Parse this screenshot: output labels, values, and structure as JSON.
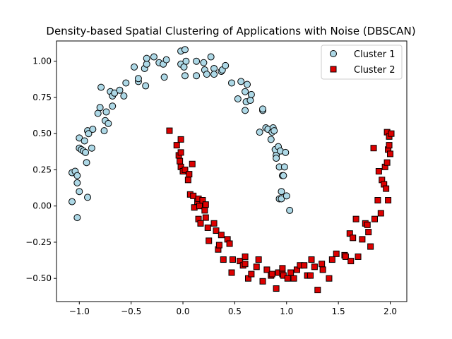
{
  "chart_data": {
    "type": "scatter",
    "title": "Density-based Spatial Clustering of Applications with Noise (DBSCAN)",
    "xlabel": "",
    "ylabel": "",
    "xlim": [
      -1.22,
      2.16
    ],
    "ylim": [
      -0.66,
      1.14
    ],
    "x_ticks": [
      -1.0,
      -0.5,
      0.0,
      0.5,
      1.0,
      1.5,
      2.0
    ],
    "y_ticks": [
      -0.5,
      -0.25,
      0.0,
      0.25,
      0.5,
      0.75,
      1.0
    ],
    "x_tick_labels": [
      "−1.0",
      "−0.5",
      "0.0",
      "0.5",
      "1.0",
      "1.5",
      "2.0"
    ],
    "y_tick_labels": [
      "−0.50",
      "−0.25",
      "0.00",
      "0.25",
      "0.50",
      "0.75",
      "1.00"
    ],
    "grid": false,
    "legend_position": "top-right",
    "series": [
      {
        "name": "Cluster 1",
        "marker": "circle",
        "color": "#add8e6",
        "edge_color": "#000000",
        "points": [
          [
            -1.07,
            0.03
          ],
          [
            -1.02,
            -0.08
          ],
          [
            -1.07,
            0.23
          ],
          [
            -1.04,
            0.24
          ],
          [
            -1.02,
            0.21
          ],
          [
            -1.02,
            0.16
          ],
          [
            -1.0,
            0.1
          ],
          [
            -1.0,
            0.47
          ],
          [
            -1.0,
            0.4
          ],
          [
            -0.98,
            0.39
          ],
          [
            -0.96,
            0.38
          ],
          [
            -0.95,
            0.45
          ],
          [
            -0.94,
            0.37
          ],
          [
            -0.93,
            0.3
          ],
          [
            -0.92,
            0.52
          ],
          [
            -0.92,
            0.06
          ],
          [
            -0.91,
            0.5
          ],
          [
            -0.88,
            0.4
          ],
          [
            -0.87,
            0.53
          ],
          [
            -0.82,
            0.64
          ],
          [
            -0.8,
            0.68
          ],
          [
            -0.79,
            0.82
          ],
          [
            -0.76,
            0.52
          ],
          [
            -0.75,
            0.59
          ],
          [
            -0.74,
            0.65
          ],
          [
            -0.72,
            0.57
          ],
          [
            -0.7,
            0.79
          ],
          [
            -0.68,
            0.69
          ],
          [
            -0.68,
            0.76
          ],
          [
            -0.66,
            0.78
          ],
          [
            -0.61,
            0.8
          ],
          [
            -0.57,
            0.76
          ],
          [
            -0.55,
            0.85
          ],
          [
            -0.47,
            0.96
          ],
          [
            -0.43,
            0.86
          ],
          [
            -0.43,
            0.88
          ],
          [
            -0.37,
            0.95
          ],
          [
            -0.36,
            0.83
          ],
          [
            -0.35,
            0.98
          ],
          [
            -0.35,
            1.02
          ],
          [
            -0.28,
            1.03
          ],
          [
            -0.23,
            0.99
          ],
          [
            -0.19,
            0.98
          ],
          [
            -0.18,
            0.89
          ],
          [
            -0.16,
            1.01
          ],
          [
            -0.02,
            1.07
          ],
          [
            -0.02,
            0.98
          ],
          [
            0.01,
            0.96
          ],
          [
            0.02,
            1.08
          ],
          [
            0.02,
            0.9
          ],
          [
            0.03,
            1.0
          ],
          [
            0.13,
            0.9
          ],
          [
            0.13,
            1.0
          ],
          [
            0.2,
            0.99
          ],
          [
            0.21,
            0.94
          ],
          [
            0.23,
            0.91
          ],
          [
            0.27,
            1.03
          ],
          [
            0.3,
            0.95
          ],
          [
            0.3,
            0.91
          ],
          [
            0.37,
            0.93
          ],
          [
            0.38,
            0.94
          ],
          [
            0.41,
            0.97
          ],
          [
            0.47,
            0.85
          ],
          [
            0.53,
            0.74
          ],
          [
            0.56,
            0.86
          ],
          [
            0.6,
            0.79
          ],
          [
            0.6,
            0.66
          ],
          [
            0.61,
            0.72
          ],
          [
            0.62,
            0.84
          ],
          [
            0.65,
            0.73
          ],
          [
            0.66,
            0.77
          ],
          [
            0.74,
            0.51
          ],
          [
            0.77,
            0.66
          ],
          [
            0.77,
            0.67
          ],
          [
            0.8,
            0.54
          ],
          [
            0.82,
            0.53
          ],
          [
            0.85,
            0.46
          ],
          [
            0.86,
            0.51
          ],
          [
            0.87,
            0.54
          ],
          [
            0.88,
            0.52
          ],
          [
            0.89,
            0.39
          ],
          [
            0.9,
            0.35
          ],
          [
            0.9,
            0.33
          ],
          [
            0.92,
            0.41
          ],
          [
            0.93,
            0.05
          ],
          [
            0.93,
            0.27
          ],
          [
            0.94,
            0.38
          ],
          [
            0.95,
            0.1
          ],
          [
            0.95,
            0.05
          ],
          [
            0.96,
            0.21
          ],
          [
            0.97,
            0.21
          ],
          [
            0.98,
            0.27
          ],
          [
            0.99,
            0.37
          ],
          [
            1.0,
            0.07
          ],
          [
            1.03,
            -0.03
          ]
        ]
      },
      {
        "name": "Cluster 2",
        "marker": "square",
        "color": "#dd0000",
        "edge_color": "#000000",
        "points": [
          [
            -0.13,
            0.52
          ],
          [
            -0.06,
            0.42
          ],
          [
            -0.04,
            0.35
          ],
          [
            -0.03,
            0.31
          ],
          [
            -0.02,
            0.46
          ],
          [
            -0.02,
            0.37
          ],
          [
            -0.02,
            0.27
          ],
          [
            0.0,
            0.24
          ],
          [
            0.02,
            0.25
          ],
          [
            0.05,
            0.18
          ],
          [
            0.06,
            0.22
          ],
          [
            0.07,
            0.08
          ],
          [
            0.09,
            0.29
          ],
          [
            0.1,
            0.07
          ],
          [
            0.11,
            -0.01
          ],
          [
            0.14,
            0.03
          ],
          [
            0.15,
            0.05
          ],
          [
            0.15,
            -0.09
          ],
          [
            0.16,
            0.0
          ],
          [
            0.17,
            -0.12
          ],
          [
            0.19,
            0.04
          ],
          [
            0.21,
            -0.03
          ],
          [
            0.22,
            0.01
          ],
          [
            0.22,
            -0.08
          ],
          [
            0.24,
            -0.15
          ],
          [
            0.25,
            -0.24
          ],
          [
            0.3,
            -0.12
          ],
          [
            0.32,
            -0.17
          ],
          [
            0.34,
            -0.3
          ],
          [
            0.35,
            -0.27
          ],
          [
            0.37,
            -0.2
          ],
          [
            0.39,
            -0.37
          ],
          [
            0.43,
            -0.23
          ],
          [
            0.45,
            -0.26
          ],
          [
            0.47,
            -0.46
          ],
          [
            0.48,
            -0.37
          ],
          [
            0.55,
            -0.38
          ],
          [
            0.58,
            -0.41
          ],
          [
            0.6,
            -0.35
          ],
          [
            0.6,
            -0.4
          ],
          [
            0.63,
            -0.5
          ],
          [
            0.66,
            -0.47
          ],
          [
            0.71,
            -0.42
          ],
          [
            0.73,
            -0.37
          ],
          [
            0.77,
            -0.52
          ],
          [
            0.81,
            -0.44
          ],
          [
            0.85,
            -0.48
          ],
          [
            0.86,
            -0.47
          ],
          [
            0.9,
            -0.57
          ],
          [
            0.92,
            -0.46
          ],
          [
            0.96,
            -0.47
          ],
          [
            0.96,
            -0.43
          ],
          [
            0.97,
            -0.48
          ],
          [
            1.01,
            -0.5
          ],
          [
            1.04,
            -0.46
          ],
          [
            1.07,
            -0.5
          ],
          [
            1.1,
            -0.44
          ],
          [
            1.13,
            -0.41
          ],
          [
            1.17,
            -0.41
          ],
          [
            1.2,
            -0.48
          ],
          [
            1.23,
            -0.48
          ],
          [
            1.24,
            -0.37
          ],
          [
            1.27,
            -0.42
          ],
          [
            1.3,
            -0.58
          ],
          [
            1.34,
            -0.4
          ],
          [
            1.35,
            -0.44
          ],
          [
            1.41,
            -0.5
          ],
          [
            1.44,
            -0.37
          ],
          [
            1.48,
            -0.33
          ],
          [
            1.56,
            -0.34
          ],
          [
            1.57,
            -0.35
          ],
          [
            1.61,
            -0.19
          ],
          [
            1.62,
            -0.38
          ],
          [
            1.64,
            -0.22
          ],
          [
            1.67,
            -0.09
          ],
          [
            1.69,
            -0.35
          ],
          [
            1.73,
            -0.23
          ],
          [
            1.76,
            -0.12
          ],
          [
            1.78,
            -0.13
          ],
          [
            1.79,
            -0.18
          ],
          [
            1.81,
            -0.28
          ],
          [
            1.84,
            0.4
          ],
          [
            1.85,
            -0.09
          ],
          [
            1.88,
            0.04
          ],
          [
            1.89,
            0.24
          ],
          [
            1.91,
            -0.05
          ],
          [
            1.92,
            0.18
          ],
          [
            1.94,
            0.15
          ],
          [
            1.95,
            0.27
          ],
          [
            1.96,
            0.12
          ],
          [
            1.97,
            0.51
          ],
          [
            1.97,
            0.3
          ],
          [
            1.98,
            0.39
          ],
          [
            1.98,
            0.04
          ],
          [
            1.99,
            0.48
          ],
          [
            1.99,
            0.42
          ],
          [
            2.0,
            0.36
          ],
          [
            2.01,
            0.5
          ]
        ]
      }
    ]
  }
}
